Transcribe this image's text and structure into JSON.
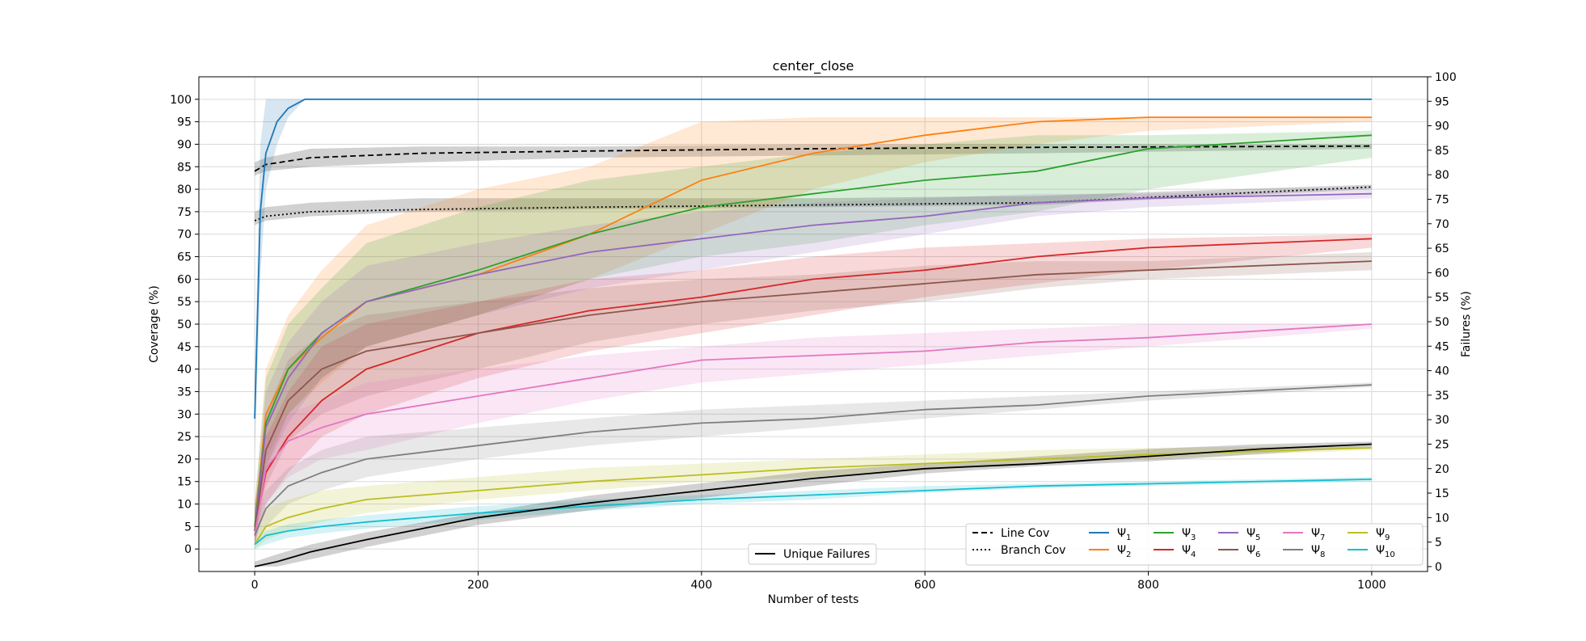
{
  "chart_data": {
    "type": "line",
    "title": "center_close",
    "xlabel": "Number of tests",
    "ylabel": "Coverage (%)",
    "y2label": "Failures (%)",
    "xlim": [
      -50,
      1050
    ],
    "ylim": [
      -5,
      105
    ],
    "y2lim": [
      -1,
      100
    ],
    "xticks": [
      "0",
      "200",
      "400",
      "600",
      "800",
      "1000"
    ],
    "yticks": [
      "0",
      "5",
      "10",
      "15",
      "20",
      "25",
      "30",
      "35",
      "40",
      "45",
      "50",
      "55",
      "60",
      "65",
      "70",
      "75",
      "80",
      "85",
      "90",
      "95",
      "100"
    ],
    "y2ticks": [
      "0",
      "5",
      "10",
      "15",
      "20",
      "25",
      "30",
      "35",
      "40",
      "45",
      "50",
      "55",
      "60",
      "65",
      "70",
      "75",
      "80",
      "85",
      "90",
      "95",
      "100"
    ],
    "grid": true,
    "legend_placement": "lower-right",
    "series": [
      {
        "name": "Line Cov",
        "color": "#000000",
        "style": "dashed",
        "x": [
          0,
          10,
          50,
          150,
          300,
          500,
          700,
          1000
        ],
        "y": [
          84,
          85.5,
          87,
          88,
          88.5,
          89,
          89.3,
          89.6
        ],
        "band_low": [
          83,
          84,
          85,
          86,
          87,
          87.5,
          88,
          89
        ],
        "band_high": [
          86,
          87,
          89,
          89.5,
          89.5,
          90,
          90,
          90
        ]
      },
      {
        "name": "Branch Cov",
        "color": "#000000",
        "style": "dotted",
        "x": [
          0,
          10,
          50,
          150,
          300,
          500,
          700,
          1000
        ],
        "y": [
          73,
          74,
          75,
          75.5,
          76,
          76.5,
          77,
          80.5
        ],
        "band_low": [
          72,
          73,
          74,
          75,
          75.5,
          76,
          76.5,
          80
        ],
        "band_high": [
          75,
          76,
          77,
          78,
          78,
          78,
          78.5,
          81
        ]
      },
      {
        "name": "Ψ1",
        "sub": "1",
        "color": "#1f77b4",
        "style": "solid",
        "x": [
          0,
          5,
          10,
          20,
          30,
          45,
          100,
          1000
        ],
        "y": [
          29,
          75,
          88,
          95,
          98,
          100,
          100,
          100
        ],
        "band_low": [
          20,
          60,
          80,
          90,
          96,
          100,
          100,
          100
        ],
        "band_high": [
          38,
          90,
          100,
          100,
          100,
          100,
          100,
          100
        ]
      },
      {
        "name": "Ψ2",
        "sub": "2",
        "color": "#ff7f0e",
        "style": "solid",
        "x": [
          0,
          10,
          30,
          60,
          100,
          200,
          300,
          400,
          500,
          600,
          700,
          800,
          1000
        ],
        "y": [
          5,
          30,
          40,
          47,
          55,
          61,
          70,
          82,
          88,
          92,
          95,
          96,
          96
        ],
        "band_low": [
          2,
          20,
          30,
          37,
          45,
          52,
          60,
          70,
          80,
          86,
          90,
          93,
          95
        ],
        "band_high": [
          10,
          40,
          52,
          62,
          72,
          80,
          85,
          95,
          96,
          96,
          96,
          96,
          96
        ]
      },
      {
        "name": "Ψ3",
        "sub": "3",
        "color": "#2ca02c",
        "style": "solid",
        "x": [
          0,
          10,
          30,
          60,
          100,
          200,
          300,
          400,
          500,
          600,
          700,
          800,
          1000
        ],
        "y": [
          5,
          28,
          40,
          48,
          55,
          62,
          70,
          76,
          79,
          82,
          84,
          89,
          92
        ],
        "band_low": [
          2,
          18,
          30,
          38,
          45,
          52,
          60,
          65,
          68,
          72,
          75,
          80,
          87
        ],
        "band_high": [
          10,
          38,
          50,
          58,
          68,
          76,
          82,
          85,
          88,
          90,
          92,
          92,
          93
        ]
      },
      {
        "name": "Ψ4",
        "sub": "4",
        "color": "#d62728",
        "style": "solid",
        "x": [
          0,
          10,
          30,
          60,
          100,
          200,
          300,
          400,
          500,
          600,
          700,
          800,
          1000
        ],
        "y": [
          4,
          17,
          25,
          33,
          40,
          48,
          53,
          56,
          60,
          62,
          65,
          67,
          69
        ],
        "band_low": [
          1,
          10,
          17,
          25,
          30,
          38,
          44,
          48,
          52,
          56,
          59,
          62,
          67
        ],
        "band_high": [
          10,
          25,
          35,
          45,
          50,
          55,
          60,
          62,
          65,
          67,
          68,
          69,
          70
        ]
      },
      {
        "name": "Ψ5",
        "sub": "5",
        "color": "#9467bd",
        "style": "solid",
        "x": [
          0,
          10,
          30,
          60,
          100,
          200,
          300,
          400,
          500,
          600,
          700,
          800,
          1000
        ],
        "y": [
          4,
          27,
          38,
          48,
          55,
          61,
          66,
          69,
          72,
          74,
          77,
          78,
          79
        ],
        "band_low": [
          1,
          18,
          28,
          38,
          45,
          52,
          58,
          62,
          66,
          70,
          74,
          76,
          78
        ],
        "band_high": [
          8,
          35,
          46,
          55,
          63,
          68,
          72,
          75,
          77,
          78,
          79,
          79,
          80
        ]
      },
      {
        "name": "Ψ6",
        "sub": "6",
        "color": "#8c564b",
        "style": "solid",
        "x": [
          0,
          10,
          30,
          60,
          100,
          200,
          300,
          400,
          500,
          600,
          700,
          800,
          1000
        ],
        "y": [
          4,
          22,
          33,
          40,
          44,
          48,
          52,
          55,
          57,
          59,
          61,
          62,
          64
        ],
        "band_low": [
          1,
          14,
          24,
          30,
          34,
          40,
          46,
          50,
          53,
          55,
          58,
          60,
          62
        ],
        "band_high": [
          8,
          30,
          42,
          48,
          52,
          55,
          58,
          60,
          61,
          63,
          64,
          64,
          66
        ]
      },
      {
        "name": "Ψ7",
        "sub": "7",
        "color": "#e377c2",
        "style": "solid",
        "x": [
          0,
          10,
          30,
          60,
          100,
          200,
          300,
          400,
          500,
          600,
          700,
          800,
          1000
        ],
        "y": [
          3,
          18,
          24,
          27,
          30,
          34,
          38,
          42,
          43,
          44,
          46,
          47,
          50
        ],
        "band_low": [
          1,
          10,
          16,
          20,
          22,
          28,
          33,
          37,
          39,
          41,
          43,
          45,
          49
        ],
        "band_high": [
          6,
          25,
          30,
          33,
          37,
          40,
          43,
          45,
          47,
          48,
          49,
          50,
          50
        ]
      },
      {
        "name": "Ψ8",
        "sub": "8",
        "color": "#7f7f7f",
        "style": "solid",
        "x": [
          0,
          10,
          30,
          60,
          100,
          200,
          300,
          400,
          500,
          600,
          700,
          800,
          1000
        ],
        "y": [
          3,
          9,
          14,
          17,
          20,
          23,
          26,
          28,
          29,
          31,
          32,
          34,
          36.5
        ],
        "band_low": [
          1,
          5,
          10,
          13,
          16,
          20,
          23,
          25,
          27,
          29,
          31,
          33,
          36
        ],
        "band_high": [
          5,
          13,
          18,
          22,
          25,
          27,
          29,
          31,
          32,
          33,
          34,
          35,
          37
        ]
      },
      {
        "name": "Ψ9",
        "sub": "9",
        "color": "#bcbd22",
        "style": "solid",
        "x": [
          0,
          10,
          30,
          60,
          100,
          200,
          300,
          400,
          500,
          600,
          700,
          800,
          1000
        ],
        "y": [
          1,
          5,
          7,
          9,
          11,
          13,
          15,
          16.5,
          18,
          19,
          20,
          21,
          22.5
        ],
        "band_low": [
          0,
          2,
          4,
          6,
          8,
          11,
          13,
          15,
          16,
          17.5,
          19,
          20,
          22
        ],
        "band_high": [
          3,
          9,
          11,
          13,
          14,
          16,
          18,
          19,
          20,
          21,
          22,
          22.5,
          23
        ]
      },
      {
        "name": "Ψ10",
        "sub": "10",
        "color": "#17becf",
        "style": "solid",
        "x": [
          0,
          10,
          30,
          60,
          100,
          200,
          300,
          400,
          500,
          600,
          700,
          800,
          1000
        ],
        "y": [
          1,
          3,
          4,
          5,
          6,
          8,
          9.5,
          11,
          12,
          13,
          14,
          14.5,
          15.5
        ],
        "band_low": [
          0,
          1,
          2.5,
          3.5,
          4.5,
          6.5,
          8.5,
          10,
          11,
          12.5,
          13.5,
          14,
          15
        ],
        "band_high": [
          2,
          4,
          5.5,
          6.5,
          7.5,
          9.5,
          11,
          12,
          13,
          14,
          14.5,
          15,
          16
        ]
      },
      {
        "name": "Unique Failures",
        "color": "#000000",
        "style": "solid",
        "axis": "y2",
        "x": [
          0,
          20,
          50,
          100,
          200,
          300,
          400,
          500,
          600,
          700,
          800,
          900,
          1000
        ],
        "y": [
          0,
          1,
          3,
          5.5,
          10,
          13,
          15.5,
          18,
          20,
          21,
          22.5,
          24,
          25
        ],
        "band_low": [
          0,
          0,
          1.5,
          4,
          8.5,
          11.5,
          14,
          16.5,
          19,
          20.5,
          21.5,
          23,
          24.5
        ],
        "band_high": [
          1,
          2.5,
          4.5,
          7,
          11,
          14.5,
          17,
          19.5,
          21,
          22.5,
          24,
          25,
          25.5
        ]
      }
    ],
    "legend_main": [
      "Line Cov",
      "Branch Cov",
      "Ψ1",
      "Ψ2",
      "Ψ3",
      "Ψ4",
      "Ψ5",
      "Ψ6",
      "Ψ7",
      "Ψ8",
      "Ψ9",
      "Ψ10"
    ],
    "legend_secondary": [
      "Unique Failures"
    ]
  }
}
